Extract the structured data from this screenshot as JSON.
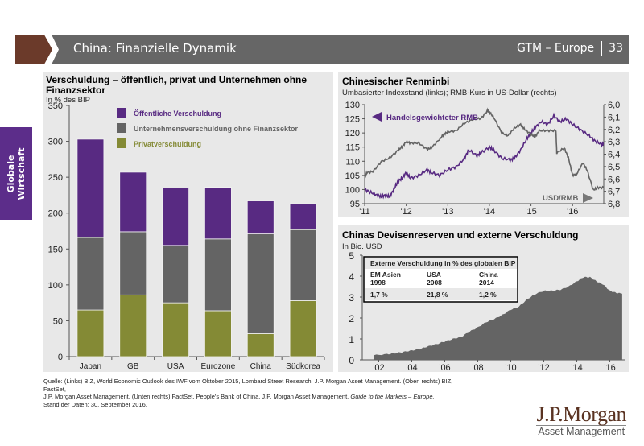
{
  "header": {
    "title": "China: Finanzielle Dynamik",
    "series_label": "GTM – Europe",
    "page_number": "33"
  },
  "side_tab": {
    "line1": "Globale",
    "line2": "Wirtschaft"
  },
  "colors": {
    "purple": "#582a82",
    "gray": "#646464",
    "olive": "#848a35",
    "brown": "#6b3a2a",
    "panel": "#e8e8e8"
  },
  "chart_data": [
    {
      "type": "bar",
      "stacked": true,
      "title": "Verschuldung – öffentlich, privat und Unternehmen ohne Finanzsektor",
      "subtitle": "In % des BIP",
      "categories": [
        "Japan",
        "GB",
        "USA",
        "Eurozone",
        "China",
        "Südkorea"
      ],
      "series": [
        {
          "name": "Privatverschuldung",
          "color": "#848a35",
          "values": [
            65,
            86,
            75,
            64,
            32,
            78
          ]
        },
        {
          "name": "Unternehmensverschuldung ohne Finanzsektor",
          "color": "#646464",
          "values": [
            101,
            88,
            80,
            100,
            139,
            99
          ]
        },
        {
          "name": "Öffentliche Verschuldung",
          "color": "#582a82",
          "values": [
            137,
            83,
            80,
            72,
            46,
            36
          ]
        }
      ],
      "legend_order": [
        "Öffentliche Verschuldung",
        "Unternehmensverschuldung ohne Finanzsektor",
        "Privatverschuldung"
      ],
      "legend_position": "top-left",
      "ylim": [
        0,
        350
      ],
      "yticks": [
        0,
        50,
        100,
        150,
        200,
        250,
        300,
        350
      ],
      "grid": false
    },
    {
      "type": "line",
      "title": "Chinesischer Renminbi",
      "subtitle": "Umbasierter Indexstand (links); RMB-Kurs in US-Dollar (rechts)",
      "x_ticks": [
        "'11",
        "'12",
        "'13",
        "'14",
        "'15",
        "'16"
      ],
      "x_range": [
        2011.0,
        2016.75
      ],
      "y_left": {
        "range": [
          95,
          130
        ],
        "ticks": [
          95,
          100,
          105,
          110,
          115,
          120,
          125,
          130
        ]
      },
      "y_right": {
        "range": [
          6.8,
          6.0
        ],
        "inverted": true,
        "ticks": [
          "6,0",
          "6,1",
          "6,2",
          "6,3",
          "6,4",
          "6,5",
          "6,6",
          "6,7",
          "6,8"
        ]
      },
      "series": [
        {
          "name": "Handelsgewichteter RMB",
          "axis": "left",
          "color": "#582a82",
          "annotation": "Handelsgewichteter RMB",
          "x": [
            2011.0,
            2011.15,
            2011.3,
            2011.4,
            2011.5,
            2011.6,
            2011.7,
            2011.8,
            2011.9,
            2012.0,
            2012.1,
            2012.3,
            2012.5,
            2012.6,
            2012.8,
            2013.0,
            2013.2,
            2013.4,
            2013.5,
            2013.7,
            2013.8,
            2014.0,
            2014.1,
            2014.3,
            2014.5,
            2014.6,
            2014.75,
            2014.9,
            2015.0,
            2015.1,
            2015.25,
            2015.4,
            2015.55,
            2015.7,
            2015.85,
            2016.0,
            2016.2,
            2016.4,
            2016.55,
            2016.7,
            2016.75
          ],
          "values": [
            100,
            99,
            98,
            97.5,
            98,
            97.5,
            100,
            103,
            104,
            106,
            104,
            105,
            107,
            106,
            105,
            107,
            108,
            111,
            114,
            112,
            113,
            115,
            114,
            111,
            110.5,
            111,
            114,
            118,
            120,
            122,
            124,
            123,
            126,
            124,
            125,
            123,
            121,
            119,
            117,
            116,
            116
          ]
        },
        {
          "name": "USD/RMB",
          "axis": "right",
          "color": "#646464",
          "annotation": "USD/RMB",
          "x": [
            2011.0,
            2011.05,
            2011.2,
            2011.4,
            2011.6,
            2011.8,
            2011.9,
            2012.0,
            2012.1,
            2012.3,
            2012.5,
            2012.6,
            2012.8,
            2012.9,
            2013.0,
            2013.2,
            2013.4,
            2013.6,
            2013.8,
            2013.95,
            2014.0,
            2014.1,
            2014.3,
            2014.45,
            2014.6,
            2014.75,
            2014.85,
            2015.0,
            2015.1,
            2015.2,
            2015.4,
            2015.6,
            2015.62,
            2015.8,
            2015.9,
            2016.0,
            2016.1,
            2016.25,
            2016.35,
            2016.5,
            2016.6,
            2016.75
          ],
          "values": [
            6.59,
            6.55,
            6.54,
            6.46,
            6.43,
            6.37,
            6.34,
            6.3,
            6.31,
            6.31,
            6.36,
            6.35,
            6.28,
            6.24,
            6.22,
            6.21,
            6.15,
            6.12,
            6.11,
            6.05,
            6.06,
            6.1,
            6.23,
            6.25,
            6.19,
            6.16,
            6.2,
            6.24,
            6.26,
            6.21,
            6.21,
            6.21,
            6.39,
            6.35,
            6.43,
            6.57,
            6.56,
            6.47,
            6.53,
            6.69,
            6.67,
            6.67
          ]
        }
      ]
    },
    {
      "type": "area",
      "title": "Chinas Devisenreserven und externe Verschuldung",
      "subtitle": "In Bio. USD",
      "x_ticks": [
        "'02",
        "'04",
        "'06",
        "'08",
        "'10",
        "'12",
        "'14",
        "'16"
      ],
      "x_range": [
        2001.0,
        2016.9
      ],
      "ylim": [
        0,
        5
      ],
      "yticks": [
        0,
        1,
        2,
        3,
        4,
        5
      ],
      "series": [
        {
          "name": "Devisenreserven",
          "color": "#646464",
          "x": [
            2001.7,
            2002.5,
            2003.0,
            2003.5,
            2004.0,
            2004.5,
            2005.0,
            2005.5,
            2006.0,
            2006.5,
            2007.0,
            2007.5,
            2008.0,
            2008.5,
            2009.0,
            2009.5,
            2010.0,
            2010.5,
            2011.0,
            2011.5,
            2012.0,
            2012.5,
            2013.0,
            2013.5,
            2014.0,
            2014.4,
            2014.8,
            2015.2,
            2015.6,
            2016.0,
            2016.4,
            2016.75
          ],
          "values": [
            0.22,
            0.27,
            0.32,
            0.38,
            0.45,
            0.52,
            0.65,
            0.75,
            0.88,
            1.0,
            1.1,
            1.35,
            1.55,
            1.8,
            1.95,
            2.15,
            2.4,
            2.55,
            2.9,
            3.15,
            3.3,
            3.3,
            3.35,
            3.5,
            3.75,
            3.95,
            3.95,
            3.75,
            3.6,
            3.3,
            3.2,
            3.17
          ]
        }
      ],
      "inset_table": {
        "title": "Externe Verschuldung in % des globalen BIP",
        "columns": [
          {
            "label": "EM Asien",
            "year": "1998",
            "value": "1,7 %"
          },
          {
            "label": "USA",
            "year": "2008",
            "value": "21,8 %"
          },
          {
            "label": "China",
            "year": "2014",
            "value": "1,2 %"
          }
        ]
      }
    }
  ],
  "footer": {
    "source_line1": "Quelle: (Links) BIZ, World Economic Outlook des IWF vom Oktober 2015, Lombard Street Research, J.P. Morgan Asset Management. (Oben rechts) BIZ, FactSet,",
    "source_line2a": "J.P. Morgan Asset Management. (Unten rechts) FactSet, People's Bank of China, J.P. Morgan Asset Management. ",
    "source_line2b": "Guide to the Markets – Europe.",
    "source_line3": "Stand der Daten: 30. September 2016.",
    "logo_main": "J.P.Morgan",
    "logo_sub": "Asset Management"
  }
}
